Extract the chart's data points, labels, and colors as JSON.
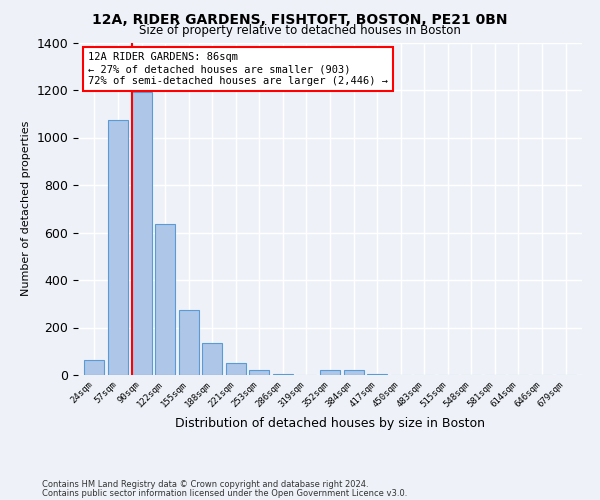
{
  "title_line1": "12A, RIDER GARDENS, FISHTOFT, BOSTON, PE21 0BN",
  "title_line2": "Size of property relative to detached houses in Boston",
  "xlabel": "Distribution of detached houses by size in Boston",
  "ylabel": "Number of detached properties",
  "categories": [
    "24sqm",
    "57sqm",
    "90sqm",
    "122sqm",
    "155sqm",
    "188sqm",
    "221sqm",
    "253sqm",
    "286sqm",
    "319sqm",
    "352sqm",
    "384sqm",
    "417sqm",
    "450sqm",
    "483sqm",
    "515sqm",
    "548sqm",
    "581sqm",
    "614sqm",
    "646sqm",
    "679sqm"
  ],
  "values": [
    65,
    1075,
    1190,
    635,
    275,
    135,
    50,
    20,
    5,
    0,
    20,
    20,
    5,
    0,
    0,
    0,
    0,
    0,
    0,
    0,
    0
  ],
  "bar_color": "#aec6e8",
  "bar_edge_color": "#5b9bd5",
  "annotation_line1": "12A RIDER GARDENS: 86sqm",
  "annotation_line2": "← 27% of detached houses are smaller (903)",
  "annotation_line3": "72% of semi-detached houses are larger (2,446) →",
  "annotation_box_color": "white",
  "annotation_edge_color": "red",
  "vline_color": "red",
  "ylim": [
    0,
    1400
  ],
  "yticks": [
    0,
    200,
    400,
    600,
    800,
    1000,
    1200,
    1400
  ],
  "footer_line1": "Contains HM Land Registry data © Crown copyright and database right 2024.",
  "footer_line2": "Contains public sector information licensed under the Open Government Licence v3.0.",
  "background_color": "#eef2f8",
  "grid_color": "white"
}
